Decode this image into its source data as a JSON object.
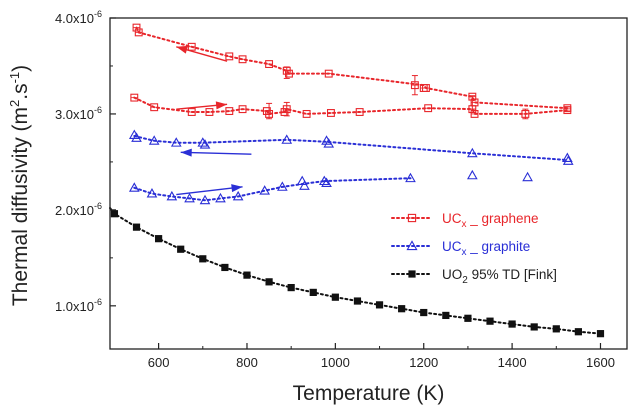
{
  "chart_data": {
    "type": "scatter",
    "xlabel": "Temperature (K)",
    "ylabel_main": "Thermal diffusivity (m",
    "ylabel_sup1": "2",
    "ylabel_mid": ".s",
    "ylabel_sup2": "-1",
    "ylabel_end": ")",
    "xlim": [
      490,
      1660
    ],
    "ylim": [
      5.5e-07,
      4e-06
    ],
    "xticks": [
      {
        "value": 600,
        "label": "600"
      },
      {
        "value": 800,
        "label": "800"
      },
      {
        "value": 1000,
        "label": "1000"
      },
      {
        "value": 1200,
        "label": "1200"
      },
      {
        "value": 1400,
        "label": "1400"
      },
      {
        "value": 1600,
        "label": "1600"
      }
    ],
    "yticks": [
      {
        "value": 1e-06,
        "base": "1.0x10",
        "exp": "-6"
      },
      {
        "value": 2e-06,
        "base": "2.0x10",
        "exp": "-6"
      },
      {
        "value": 3e-06,
        "base": "3.0x10",
        "exp": "-6"
      },
      {
        "value": 4e-06,
        "base": "4.0x10",
        "exp": "-6"
      }
    ],
    "legend_position": "right",
    "series": [
      {
        "name": "UC_x _ graphene",
        "name_main": "UC",
        "name_sub": "x",
        "name_rest": " _ graphene",
        "color": "#e8262b",
        "marker": "square-open",
        "segments": [
          {
            "x": [
              550,
              555,
              675,
              760,
              790,
              850,
              890,
              895,
              985,
              1200,
              1205,
              1310,
              1315,
              1525
            ],
            "y": [
              3.9e-06,
              3.85e-06,
              3.7e-06,
              3.6e-06,
              3.57e-06,
              3.52e-06,
              3.45e-06,
              3.42e-06,
              3.42e-06,
              3.3e-06,
              3.27e-06,
              3.18e-06,
              3.12e-06,
              3.06e-06
            ]
          },
          {
            "x": [
              545,
              590,
              675,
              715,
              760,
              790,
              845,
              850,
              885,
              890,
              935,
              990,
              1055,
              1210,
              1310,
              1315,
              1430,
              1525
            ],
            "y": [
              3.17e-06,
              3.07e-06,
              3.02e-06,
              3.02e-06,
              3.03e-06,
              3.05e-06,
              3.03e-06,
              3e-06,
              3.02e-06,
              3.05e-06,
              3e-06,
              3.01e-06,
              3.02e-06,
              3.06e-06,
              3.05e-06,
              3e-06,
              3e-06,
              3.04e-06
            ]
          }
        ],
        "points_x": [
          550,
          555,
          675,
          760,
          790,
          850,
          890,
          895,
          985,
          1180,
          1200,
          1205,
          1310,
          1315,
          1525,
          545,
          590,
          675,
          715,
          760,
          790,
          845,
          850,
          885,
          890,
          935,
          990,
          1055,
          1210,
          1310,
          1315,
          1430,
          1525
        ],
        "points_y": [
          3.9e-06,
          3.85e-06,
          3.7e-06,
          3.6e-06,
          3.57e-06,
          3.52e-06,
          3.45e-06,
          3.42e-06,
          3.42e-06,
          3.3e-06,
          3.27e-06,
          3.27e-06,
          3.18e-06,
          3.12e-06,
          3.06e-06,
          3.17e-06,
          3.07e-06,
          3.02e-06,
          3.02e-06,
          3.03e-06,
          3.05e-06,
          3.03e-06,
          3e-06,
          3.02e-06,
          3.05e-06,
          3e-06,
          3.01e-06,
          3.02e-06,
          3.06e-06,
          3.05e-06,
          3e-06,
          3e-06,
          3.04e-06
        ]
      },
      {
        "name": "UC_x _ graphite",
        "name_main": "UC",
        "name_sub": "x",
        "name_rest": " _ graphite",
        "color": "#2a2fd6",
        "marker": "triangle-open",
        "segments": [
          {
            "x": [
              545,
              590,
              640,
              700,
              890,
              980,
              1310,
              1525
            ],
            "y": [
              2.77e-06,
              2.72e-06,
              2.7e-06,
              2.7e-06,
              2.73e-06,
              2.71e-06,
              2.59e-06,
              2.52e-06
            ]
          },
          {
            "x": [
              545,
              585,
              630,
              670,
              705,
              740,
              780,
              840,
              880,
              925,
              975
            ],
            "y": [
              2.23e-06,
              2.17e-06,
              2.14e-06,
              2.12e-06,
              2.1e-06,
              2.12e-06,
              2.14e-06,
              2.2e-06,
              2.24e-06,
              2.27e-06,
              2.3e-06
            ]
          },
          {
            "x": [
              975,
              1170
            ],
            "y": [
              2.3e-06,
              2.33e-06
            ]
          }
        ],
        "points_x": [
          545,
          550,
          590,
          640,
          700,
          705,
          890,
          980,
          985,
          1310,
          1525,
          1527,
          545,
          585,
          630,
          670,
          705,
          740,
          780,
          840,
          880,
          925,
          930,
          975,
          980,
          1170,
          1310,
          1435
        ],
        "points_y": [
          2.78e-06,
          2.75e-06,
          2.72e-06,
          2.7e-06,
          2.7e-06,
          2.68e-06,
          2.73e-06,
          2.72e-06,
          2.69e-06,
          2.59e-06,
          2.54e-06,
          2.51e-06,
          2.23e-06,
          2.17e-06,
          2.14e-06,
          2.12e-06,
          2.1e-06,
          2.12e-06,
          2.14e-06,
          2.2e-06,
          2.24e-06,
          2.3e-06,
          2.25e-06,
          2.3e-06,
          2.28e-06,
          2.33e-06,
          2.36e-06,
          2.34e-06
        ]
      },
      {
        "name": "UO2 95% TD [Fink]",
        "name_main": "UO",
        "name_sub": "2",
        "name_rest": " 95% TD [Fink]",
        "color": "#111111",
        "marker": "square-filled",
        "segments": [
          {
            "x": [
              490,
              500,
              550,
              600,
              650,
              700,
              750,
              800,
              850,
              900,
              950,
              1000,
              1050,
              1100,
              1150,
              1200,
              1250,
              1300,
              1350,
              1400,
              1450,
              1500,
              1550,
              1600
            ],
            "y": [
              2.02e-06,
              1.96e-06,
              1.82e-06,
              1.7e-06,
              1.59e-06,
              1.49e-06,
              1.4e-06,
              1.32e-06,
              1.25e-06,
              1.19e-06,
              1.14e-06,
              1.09e-06,
              1.05e-06,
              1.01e-06,
              9.7e-07,
              9.3e-07,
              9e-07,
              8.7e-07,
              8.4e-07,
              8.1e-07,
              7.8e-07,
              7.6e-07,
              7.3e-07,
              7.1e-07
            ]
          }
        ],
        "points_x": [
          500,
          550,
          600,
          650,
          700,
          750,
          800,
          850,
          900,
          950,
          1000,
          1050,
          1100,
          1150,
          1200,
          1250,
          1300,
          1350,
          1400,
          1450,
          1500,
          1550,
          1600
        ],
        "points_y": [
          1.96e-06,
          1.82e-06,
          1.7e-06,
          1.59e-06,
          1.49e-06,
          1.4e-06,
          1.32e-06,
          1.25e-06,
          1.19e-06,
          1.14e-06,
          1.09e-06,
          1.05e-06,
          1.01e-06,
          9.7e-07,
          9.3e-07,
          9e-07,
          8.7e-07,
          8.4e-07,
          8.1e-07,
          7.8e-07,
          7.6e-07,
          7.3e-07,
          7.1e-07
        ]
      }
    ],
    "error_bars": [
      {
        "series": 0,
        "x": 1180,
        "y": 3.3e-06,
        "err": 1e-07
      },
      {
        "series": 0,
        "x": 850,
        "y": 3.03e-06,
        "err": 8e-08
      },
      {
        "series": 0,
        "x": 890,
        "y": 3.05e-06,
        "err": 7e-08
      },
      {
        "series": 0,
        "x": 1310,
        "y": 3.12e-06,
        "err": 7e-08
      },
      {
        "series": 0,
        "x": 890,
        "y": 3.43e-06,
        "err": 6e-08
      },
      {
        "series": 0,
        "x": 1430,
        "y": 3e-06,
        "err": 5e-08
      }
    ],
    "annotations": [
      {
        "type": "arrow",
        "color": "#e8262b",
        "from": [
          755,
          3.55e-06
        ],
        "to": [
          640,
          3.7e-06
        ]
      },
      {
        "type": "arrow",
        "color": "#e8262b",
        "from": [
          640,
          3.05e-06
        ],
        "to": [
          755,
          3.1e-06
        ]
      },
      {
        "type": "arrow",
        "color": "#2a2fd6",
        "from": [
          810,
          2.58e-06
        ],
        "to": [
          650,
          2.6e-06
        ]
      },
      {
        "type": "arrow",
        "color": "#2a2fd6",
        "from": [
          640,
          2.16e-06
        ],
        "to": [
          790,
          2.24e-06
        ]
      }
    ]
  }
}
